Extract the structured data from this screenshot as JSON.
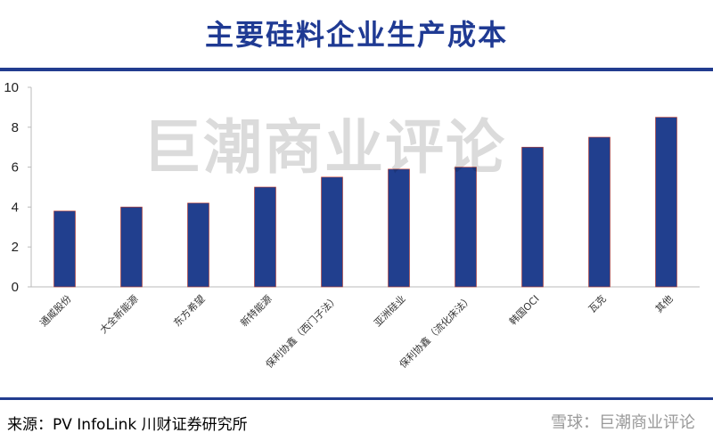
{
  "title": "主要硅料企业生产成本",
  "watermark": "巨潮商业评论",
  "source": "来源：PV InfoLink  川财证券研究所",
  "brand": "雪球：巨潮商业评论",
  "chart_data": {
    "type": "bar",
    "categories": [
      "通威股份",
      "大全新能源",
      "东方希望",
      "新特能源",
      "保利协鑫（西门子法）",
      "亚洲硅业",
      "保利协鑫（流化床法）",
      "韩国OCI",
      "瓦克",
      "其他"
    ],
    "values": [
      3.8,
      4.0,
      4.2,
      5.0,
      5.5,
      5.9,
      6.0,
      7.0,
      7.5,
      8.5
    ],
    "ylim": [
      0,
      10
    ],
    "yticks": [
      0,
      2,
      4,
      6,
      8,
      10
    ],
    "bar_color": "#213f8e",
    "grid": false
  }
}
